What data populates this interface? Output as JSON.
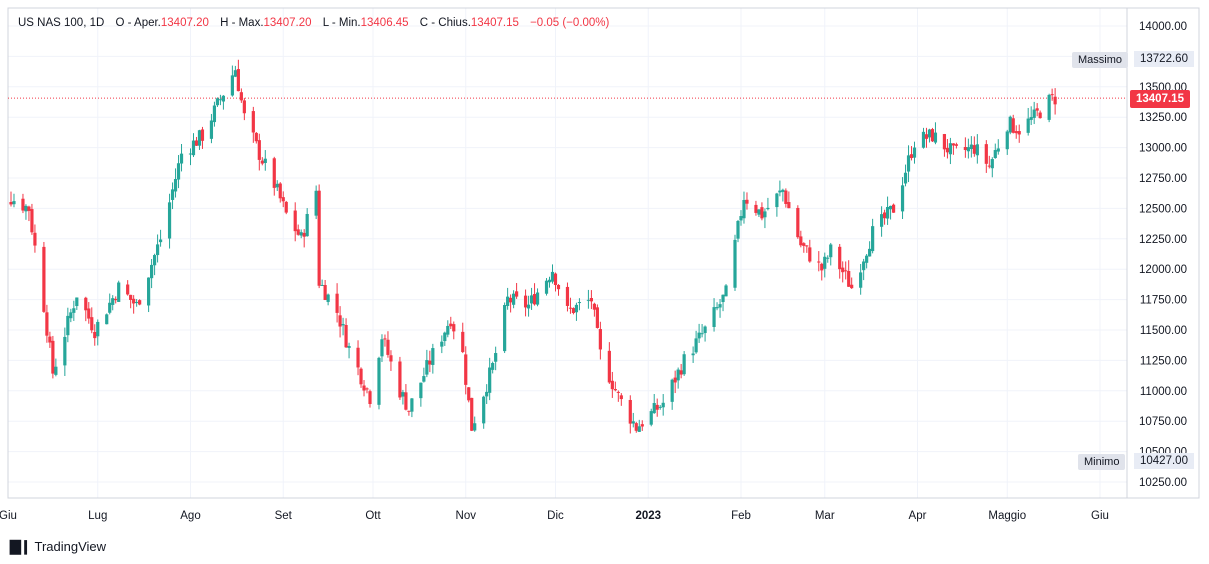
{
  "legend": {
    "symbol": "US NAS 100, 1D",
    "open_label": "O - Aper.",
    "open_value": "13407.20",
    "high_label": "H - Max.",
    "high_value": "13407.20",
    "low_label": "L - Min.",
    "low_value": "13406.45",
    "close_label": "C - Chius.",
    "close_value": "13407.15",
    "change": "−0.05 (−0.00%)"
  },
  "tags": {
    "high_label": "Massimo",
    "high_value": "13722.60",
    "low_label": "Minimo",
    "low_value": "10427.00",
    "last_price": "13407.15"
  },
  "brand": {
    "name": "TradingView"
  },
  "colors": {
    "up": "#26a69a",
    "down": "#f23645",
    "grid": "#f0f3fa",
    "last_price_line": "#f23645"
  },
  "chart_data": {
    "type": "candlestick",
    "title": "",
    "symbol": "US NAS 100",
    "interval": "1D",
    "y_ticks": [
      "14000.00",
      "13750.00",
      "13500.00",
      "13250.00",
      "13000.00",
      "12750.00",
      "12500.00",
      "12250.00",
      "12000.00",
      "11750.00",
      "11500.00",
      "11250.00",
      "11000.00",
      "10750.00",
      "10500.00",
      "10250.00"
    ],
    "ylim": [
      10100,
      14150
    ],
    "x_ticks": [
      {
        "label": "Giu",
        "date": "2022-06-01"
      },
      {
        "label": "Lug",
        "date": "2022-07-01"
      },
      {
        "label": "Ago",
        "date": "2022-08-01"
      },
      {
        "label": "Set",
        "date": "2022-09-01"
      },
      {
        "label": "Ott",
        "date": "2022-10-01"
      },
      {
        "label": "Nov",
        "date": "2022-11-01"
      },
      {
        "label": "Dic",
        "date": "2022-12-01"
      },
      {
        "label": "2023",
        "date": "2023-01-01",
        "bold": true
      },
      {
        "label": "Feb",
        "date": "2023-02-01"
      },
      {
        "label": "Mar",
        "date": "2023-03-01"
      },
      {
        "label": "Apr",
        "date": "2023-04-01"
      },
      {
        "label": "Maggio",
        "date": "2023-05-01"
      },
      {
        "label": "Giu",
        "date": "2023-06-01"
      }
    ],
    "grid": true,
    "last_price": 13407.15,
    "high": 13722.6,
    "low": 10427.0,
    "close_path": [
      [
        "2022-06-01",
        12600
      ],
      [
        "2022-06-08",
        12500
      ],
      [
        "2022-06-13",
        11700
      ],
      [
        "2022-06-16",
        11150
      ],
      [
        "2022-06-24",
        11800
      ],
      [
        "2022-06-30",
        11500
      ],
      [
        "2022-07-08",
        11850
      ],
      [
        "2022-07-14",
        11700
      ],
      [
        "2022-07-22",
        12250
      ],
      [
        "2022-07-29",
        12950
      ],
      [
        "2022-08-05",
        13100
      ],
      [
        "2022-08-12",
        13450
      ],
      [
        "2022-08-16",
        13650
      ],
      [
        "2022-08-19",
        13250
      ],
      [
        "2022-08-24",
        12950
      ],
      [
        "2022-08-29",
        12700
      ],
      [
        "2022-09-02",
        12450
      ],
      [
        "2022-09-07",
        12250
      ],
      [
        "2022-09-12",
        12650
      ],
      [
        "2022-09-13",
        11900
      ],
      [
        "2022-09-19",
        11650
      ],
      [
        "2022-09-23",
        11350
      ],
      [
        "2022-09-30",
        10950
      ],
      [
        "2022-10-04",
        11450
      ],
      [
        "2022-10-10",
        11000
      ],
      [
        "2022-10-13",
        10850
      ],
      [
        "2022-10-21",
        11300
      ],
      [
        "2022-10-27",
        11600
      ],
      [
        "2022-10-31",
        11300
      ],
      [
        "2022-11-03",
        10700
      ],
      [
        "2022-11-10",
        11200
      ],
      [
        "2022-11-15",
        11750
      ],
      [
        "2022-11-22",
        11700
      ],
      [
        "2022-11-30",
        12000
      ],
      [
        "2022-12-05",
        11650
      ],
      [
        "2022-12-13",
        11750
      ],
      [
        "2022-12-16",
        11300
      ],
      [
        "2022-12-22",
        10950
      ],
      [
        "2022-12-28",
        10700
      ],
      [
        "2023-01-06",
        10900
      ],
      [
        "2023-01-13",
        11250
      ],
      [
        "2023-01-20",
        11500
      ],
      [
        "2023-01-27",
        11800
      ],
      [
        "2023-02-02",
        12600
      ],
      [
        "2023-02-08",
        12450
      ],
      [
        "2023-02-15",
        12650
      ],
      [
        "2023-02-21",
        12200
      ],
      [
        "2023-02-28",
        12000
      ],
      [
        "2023-03-03",
        12150
      ],
      [
        "2023-03-10",
        11850
      ],
      [
        "2023-03-17",
        12300
      ],
      [
        "2023-03-24",
        12500
      ],
      [
        "2023-03-31",
        13050
      ],
      [
        "2023-04-06",
        13100
      ],
      [
        "2023-04-13",
        12950
      ],
      [
        "2023-04-20",
        13000
      ],
      [
        "2023-04-25",
        12850
      ],
      [
        "2023-05-01",
        13200
      ],
      [
        "2023-05-05",
        13150
      ],
      [
        "2023-05-10",
        13250
      ],
      [
        "2023-05-15",
        13380
      ],
      [
        "2023-05-17",
        13407.15
      ]
    ]
  }
}
